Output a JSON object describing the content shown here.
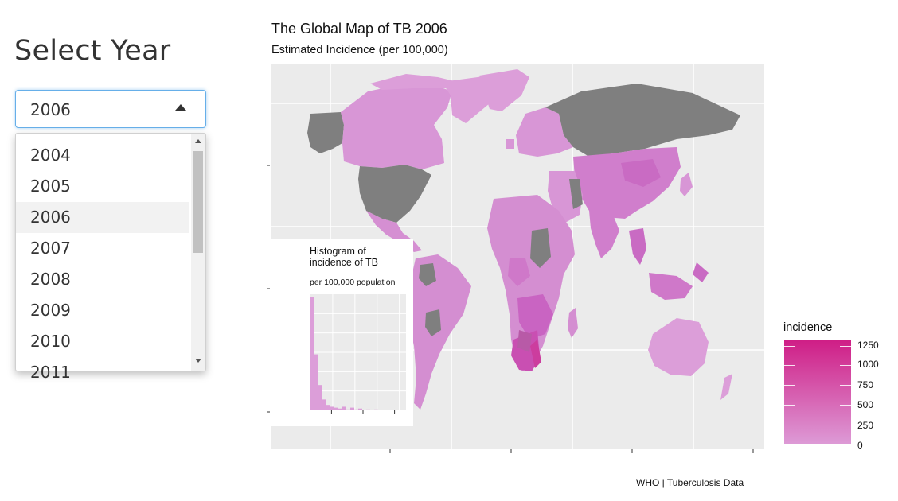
{
  "sidebar": {
    "title": "Select Year",
    "select": {
      "value": "2006",
      "options": [
        "2004",
        "2005",
        "2006",
        "2007",
        "2008",
        "2009",
        "2010",
        "2011"
      ],
      "highlighted": "2006"
    }
  },
  "plot": {
    "title": "The Global Map of TB 2006",
    "subtitle": "Estimated Incidence (per 100,000)",
    "caption": "WHO | Tuberculosis Data",
    "legend": {
      "title": "incidence",
      "labels": [
        "1250",
        "1000",
        "750",
        "500",
        "250",
        "0"
      ],
      "color_high": "#cf1e86",
      "color_low": "#dd9ad6",
      "no_data_color": "#7f7f7f"
    },
    "inset": {
      "title": "Histogram of incidence of TB",
      "subtitle": "per 100,000 population"
    }
  },
  "chart_data": {
    "type": "bar",
    "title": "Histogram of incidence of TB",
    "subtitle": "per 100,000 population",
    "values": [
      125,
      62,
      28,
      12,
      6,
      4,
      3,
      2,
      4,
      1,
      3,
      1,
      2,
      0,
      1,
      0,
      1,
      0,
      0,
      0,
      0,
      0,
      0,
      0
    ],
    "grid": true
  }
}
